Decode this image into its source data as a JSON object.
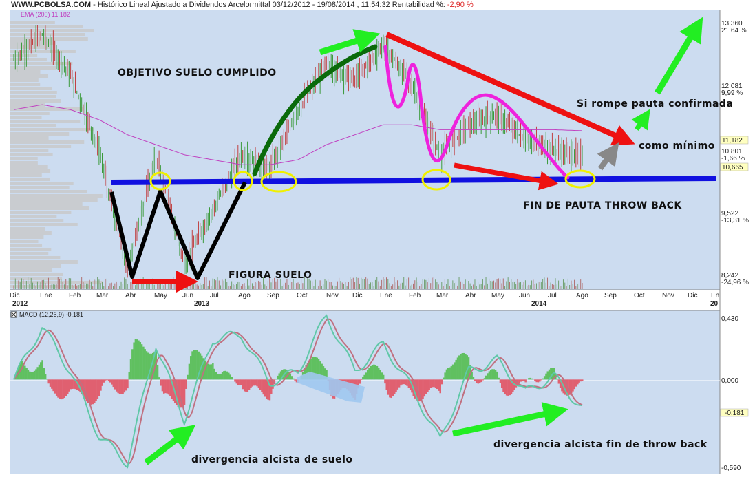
{
  "header": {
    "site": "WWW.PCBOLSA.COM",
    "title": " - Histórico Lineal  Ajustado a Dividendos Arcelormittal 03/12/2012 - 19/08/2014 , 11:54:32 Rentabilidad %: ",
    "rentabilidad": "-2,90 %",
    "ema_label": "EMA (200) 11,182"
  },
  "colors": {
    "panel_bg": "#ccdcf0",
    "up": "#3a9a3a",
    "down": "#c04040",
    "ema": "#c040c0",
    "support": "#1010e0",
    "arrow_red": "#ee1111",
    "arrow_green": "#22ee22",
    "arrow_gray": "#888888",
    "curve_dark_green": "#0a6a0a",
    "curve_magenta": "#ee22dd",
    "circle": "#f0f000",
    "macd_line": "#60c8a8",
    "macd_signal": "#c07080",
    "hist_pos": "#60c060",
    "hist_neg": "#e06070"
  },
  "x_axis": {
    "labels": [
      "Dic",
      "Ene",
      "Feb",
      "Mar",
      "Abr",
      "May",
      "Jun",
      "Jul",
      "Ago",
      "Sep",
      "Oct",
      "Nov",
      "Dic",
      "Ene",
      "Feb",
      "Mar",
      "Abr",
      "May",
      "Jun",
      "Jul",
      "Ago",
      "Sep",
      "Oct",
      "Nov",
      "Dic",
      "En"
    ],
    "years": [
      "2012",
      "2013",
      "2014",
      "20"
    ]
  },
  "price_axis": {
    "levels": [
      {
        "value": "13,360",
        "pct": "21,64 %",
        "pct_color": "#1a8a1a"
      },
      {
        "value": "12,081",
        "pct": "9,99 %",
        "pct_color": "#1a8a1a"
      },
      {
        "value": "10,801",
        "pct": "-1,66 %",
        "pct_color": "#cc2222"
      },
      {
        "value": "9,522",
        "pct": "-13,31 %",
        "pct_color": "#cc2222"
      },
      {
        "value": "8,242",
        "pct": "-24,96 %",
        "pct_color": "#cc2222"
      }
    ],
    "ema_badge": "11,182",
    "last_badge": "10,665"
  },
  "macd": {
    "label": "MACD (12,26,9) -0,181",
    "ticks": [
      "0,430",
      "0,000",
      "-0,590"
    ],
    "last_badge": "-0,181"
  },
  "annotations": {
    "objetivo": "OBJETIVO SUELO CUMPLIDO",
    "figura": "FIGURA SUELO",
    "fin_pauta": "FIN DE PAUTA THROW BACK",
    "si_rompe": "Si rompe pauta confirmada",
    "como_minimo": "como mínimo",
    "div_suelo": "divergencia alcista de suelo",
    "div_fin": "divergencia alcista fin de throw back"
  },
  "chart_data": [
    {
      "type": "line",
      "title": "Histórico Lineal Ajustado a Dividendos Arcelormittal 03/12/2012 - 19/08/2014",
      "xlabel": "",
      "ylabel": "",
      "x": [
        "2012-12",
        "2013-01",
        "2013-02",
        "2013-03",
        "2013-04",
        "2013-05",
        "2013-06",
        "2013-07",
        "2013-08",
        "2013-09",
        "2013-10",
        "2013-11",
        "2013-12",
        "2014-01",
        "2014-02",
        "2014-03",
        "2014-04",
        "2014-05",
        "2014-06",
        "2014-07",
        "2014-08"
      ],
      "series": [
        {
          "name": "Arcelormittal",
          "values": [
            12.6,
            13.1,
            12.3,
            10.8,
            8.4,
            10.7,
            8.5,
            9.6,
            10.7,
            10.4,
            11.6,
            12.5,
            12.2,
            12.9,
            12.1,
            10.7,
            11.3,
            11.5,
            11.0,
            10.8,
            10.67
          ]
        },
        {
          "name": "EMA (200)",
          "values": [
            11.6,
            11.7,
            11.6,
            11.4,
            11.1,
            10.9,
            10.7,
            10.6,
            10.5,
            10.5,
            10.6,
            10.9,
            11.1,
            11.3,
            11.3,
            11.2,
            11.2,
            11.2,
            11.2,
            11.2,
            11.18
          ]
        }
      ],
      "ylim": [
        8.0,
        13.6
      ]
    },
    {
      "type": "line",
      "title": "MACD (12,26,9) -0,181",
      "x": [
        "2012-12",
        "2013-01",
        "2013-02",
        "2013-03",
        "2013-04",
        "2013-05",
        "2013-06",
        "2013-07",
        "2013-08",
        "2013-09",
        "2013-10",
        "2013-11",
        "2013-12",
        "2014-01",
        "2014-02",
        "2014-03",
        "2014-04",
        "2014-05",
        "2014-06",
        "2014-07",
        "2014-08"
      ],
      "series": [
        {
          "name": "MACD",
          "values": [
            0.0,
            0.33,
            0.05,
            -0.35,
            -0.52,
            0.22,
            -0.25,
            0.25,
            0.28,
            -0.02,
            0.05,
            0.4,
            0.05,
            0.22,
            -0.05,
            -0.38,
            0.05,
            0.12,
            -0.08,
            0.02,
            -0.18
          ]
        }
      ],
      "ylim": [
        -0.59,
        0.43
      ]
    }
  ]
}
